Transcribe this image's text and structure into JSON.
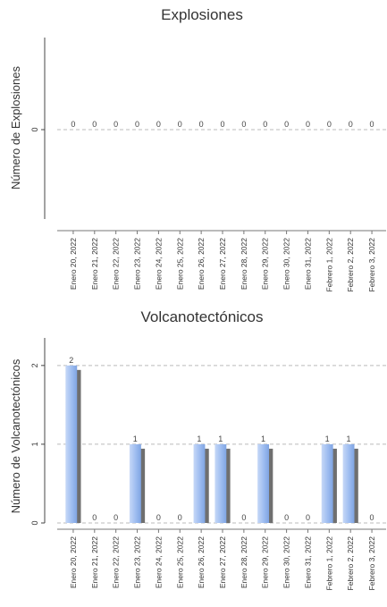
{
  "chart_data": [
    {
      "type": "bar",
      "title": "Explosiones",
      "ylabel": "Número de Explosiones",
      "xlabel": "",
      "categories": [
        "Enero 20, 2022",
        "Enero 21, 2022",
        "Enero 22, 2022",
        "Enero 23, 2022",
        "Enero 24, 2022",
        "Enero 25, 2022",
        "Enero 26, 2022",
        "Enero 27, 2022",
        "Enero 28, 2022",
        "Enero 29, 2022",
        "Enero 30, 2022",
        "Enero 31, 2022",
        "Febrero 1, 2022",
        "Febrero 2, 2022",
        "Febrero 3, 2022"
      ],
      "values": [
        0,
        0,
        0,
        0,
        0,
        0,
        0,
        0,
        0,
        0,
        0,
        0,
        0,
        0,
        0
      ],
      "y_ticks": [
        "0"
      ],
      "ylim": [
        -1,
        1
      ],
      "grid": "horizontal-dashed",
      "bar_color": "#9dbcf0",
      "shadow_color": "#6f6f6f"
    },
    {
      "type": "bar",
      "title": "Volcanotectónicos",
      "ylabel": "Número de Volcanotectónicos",
      "xlabel": "",
      "categories": [
        "Enero 20, 2022",
        "Enero 21, 2022",
        "Enero 22, 2022",
        "Enero 23, 2022",
        "Enero 24, 2022",
        "Enero 25, 2022",
        "Enero 26, 2022",
        "Enero 27, 2022",
        "Enero 28, 2022",
        "Enero 29, 2022",
        "Enero 30, 2022",
        "Enero 31, 2022",
        "Febrero 1, 2022",
        "Febrero 2, 2022",
        "Febrero 3, 2022"
      ],
      "values": [
        2,
        0,
        0,
        1,
        0,
        0,
        1,
        1,
        0,
        1,
        0,
        0,
        1,
        1,
        0
      ],
      "y_ticks": [
        "0",
        "1",
        "2"
      ],
      "ylim": [
        0,
        2.35
      ],
      "grid": "horizontal-dashed",
      "bar_color": "#9dbcf0",
      "shadow_color": "#6f6f6f"
    }
  ]
}
